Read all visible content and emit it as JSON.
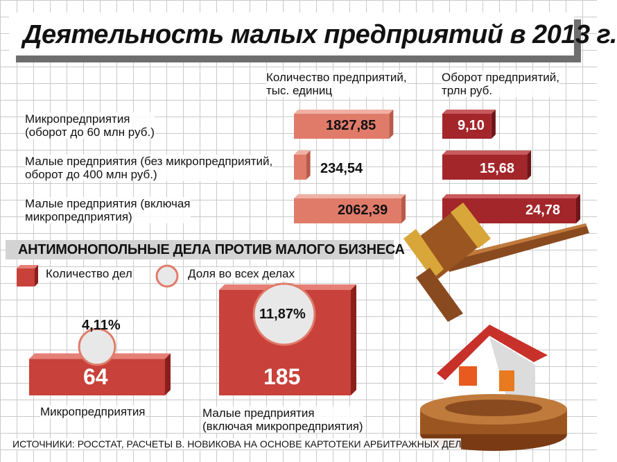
{
  "title": "Деятельность малых предприятий в 2013 г.",
  "colors": {
    "light_bar": "#e07b6a",
    "dark_bar": "#a3262a",
    "case_bar": "#c8413a",
    "circle": "#e8e8e8"
  },
  "chart_data": [
    {
      "type": "bar",
      "categories": [
        "Микропредприятия (оборот до 60 млн руб.)",
        "Малые предприятия (без микропредприятий, оборот до 400 млн руб.)",
        "Малые предприятия (включая микропредприятия)"
      ],
      "series": [
        {
          "name": "Количество предприятий, тыс. единиц",
          "values": [
            1827.85,
            234.54,
            2062.39
          ],
          "labels": [
            "1827,85",
            "234,54",
            "2062,39"
          ]
        },
        {
          "name": "Оборот предприятий, трлн руб.",
          "values": [
            9.1,
            15.68,
            24.78
          ],
          "labels": [
            "9,10",
            "15,68",
            "24,78"
          ]
        }
      ]
    },
    {
      "type": "bar",
      "title": "АНТИМОНОПОЛЬНЫЕ ДЕЛА ПРОТИВ МАЛОГО БИЗНЕСА",
      "categories": [
        "Микропредприятия",
        "Малые предприятия (включая микропредприятия)"
      ],
      "series": [
        {
          "name": "Количество дел",
          "values": [
            64,
            185
          ],
          "labels": [
            "64",
            "185"
          ]
        },
        {
          "name": "Доля во всех делах",
          "values": [
            4.11,
            11.87
          ],
          "labels": [
            "4,11%",
            "11,87%"
          ]
        }
      ]
    }
  ],
  "header": {
    "col1_line1": "Количество предприятий,",
    "col1_line2": "тыс. единиц",
    "col2_line1": "Оборот предприятий,",
    "col2_line2": "трлн руб."
  },
  "rows": [
    {
      "line1": "Микропредприятия",
      "line2": "(оборот до 60 млн руб.)"
    },
    {
      "line1": "Малые предприятия (без микропредприятий,",
      "line2": "оборот до 400 млн руб.)"
    },
    {
      "line1": "Малые предприятия (включая",
      "line2": "микропредприятия)"
    }
  ],
  "section": {
    "title": "АНТИМОНОПОЛЬНЫЕ ДЕЛА ПРОТИВ МАЛОГО БИЗНЕСА",
    "legend_count": "Количество дел",
    "legend_share": "Доля во всех делах",
    "micro_label": "Микропредприятия",
    "small_label_line1": "Малые предприятия",
    "small_label_line2": "(включая микропредприятия)"
  },
  "source": "ИСТОЧНИКИ: РОССТАТ, РАСЧЕТЫ В. НОВИКОВА НА ОСНОВЕ КАРТОТЕКИ АРБИТРАЖНЫХ ДЕЛ",
  "icons": {
    "gavel": "gavel-icon",
    "house": "house-icon"
  }
}
